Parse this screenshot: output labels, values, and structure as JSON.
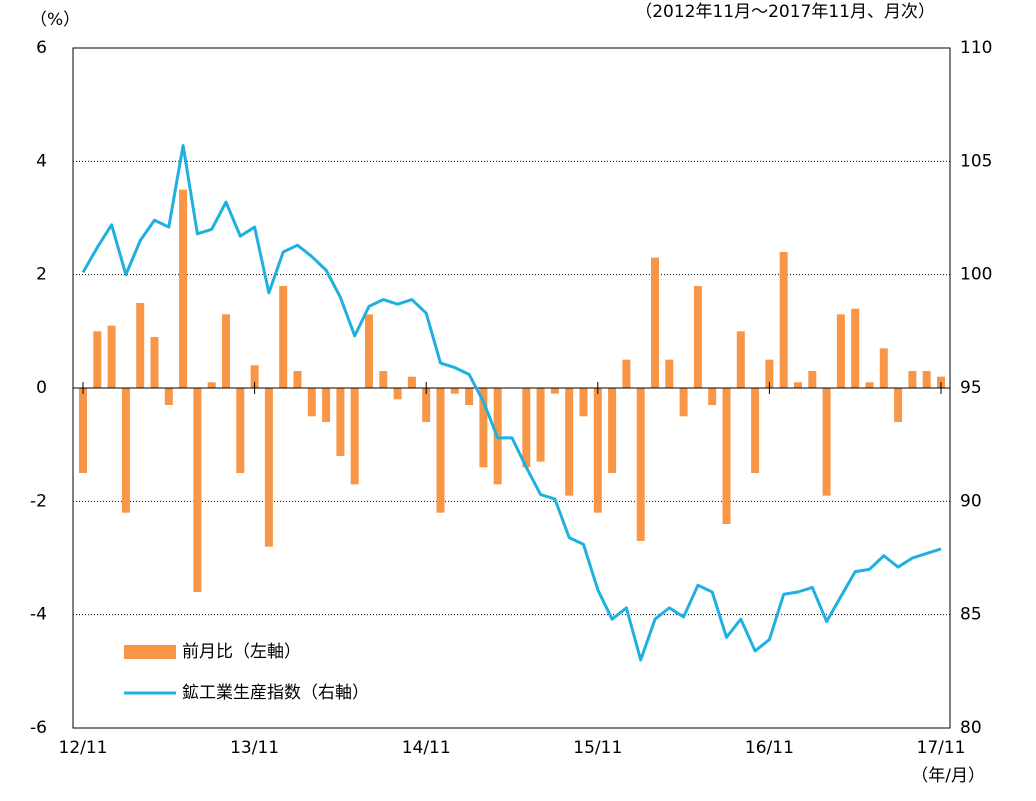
{
  "chart_data": {
    "type": "bar_line",
    "y_label": "（%）",
    "subtitle": "（2012年11月～2017年11月、月次）",
    "x_label": "（年/月）",
    "categories": [
      "12/11",
      null,
      null,
      null,
      null,
      null,
      null,
      null,
      null,
      null,
      null,
      null,
      "13/11",
      null,
      null,
      null,
      null,
      null,
      null,
      null,
      null,
      null,
      null,
      null,
      "14/11",
      null,
      null,
      null,
      null,
      null,
      null,
      null,
      null,
      null,
      null,
      null,
      "15/11",
      null,
      null,
      null,
      null,
      null,
      null,
      null,
      null,
      null,
      null,
      null,
      "16/11",
      null,
      null,
      null,
      null,
      null,
      null,
      null,
      null,
      null,
      null,
      null,
      "17/11"
    ],
    "series": [
      {
        "name": "前月比（左軸）",
        "color": "#f79646",
        "kind": "bar",
        "values": [
          -1.5,
          1.0,
          1.1,
          -2.2,
          1.5,
          0.9,
          -0.3,
          3.5,
          -3.6,
          0.1,
          1.3,
          -1.5,
          0.4,
          -2.8,
          1.8,
          0.3,
          -0.5,
          -0.6,
          -1.2,
          -1.7,
          1.3,
          0.3,
          -0.2,
          0.2,
          -0.6,
          -2.2,
          -0.1,
          -0.3,
          -1.4,
          -1.7,
          0.0,
          -1.4,
          -1.3,
          -0.1,
          -1.9,
          -0.5,
          -2.2,
          -1.5,
          0.5,
          -2.7,
          2.3,
          0.5,
          -0.5,
          1.8,
          -0.3,
          -2.4,
          1.0,
          -1.5,
          0.5,
          2.4,
          0.1,
          0.3,
          -1.9,
          1.3,
          1.4,
          0.1,
          0.7,
          -0.6,
          0.3,
          0.3,
          0.2
        ]
      },
      {
        "name": "鉱工業生産指数（右軸）",
        "color": "#1fb0e0",
        "kind": "line",
        "axis": "y2",
        "values": [
          100.1,
          101.2,
          102.2,
          100.0,
          101.5,
          102.4,
          102.1,
          105.7,
          101.8,
          102.0,
          103.2,
          101.7,
          102.1,
          99.2,
          101.0,
          101.3,
          100.8,
          100.2,
          99.0,
          97.3,
          98.6,
          98.9,
          98.7,
          98.9,
          98.3,
          96.1,
          95.9,
          95.6,
          94.4,
          92.8,
          92.8,
          91.5,
          90.3,
          90.1,
          88.4,
          88.1,
          86.1,
          84.8,
          85.3,
          83.0,
          84.8,
          85.3,
          84.9,
          86.3,
          86.0,
          84.0,
          84.8,
          83.4,
          83.9,
          85.9,
          86.0,
          86.2,
          84.7,
          85.8,
          86.9,
          87.0,
          87.6,
          87.1,
          87.5,
          87.7,
          87.9
        ]
      }
    ],
    "ylim": [
      -6,
      6
    ],
    "yticks": [
      6,
      4,
      2,
      0,
      -2,
      -4,
      -6
    ],
    "y2lim": [
      80,
      110
    ],
    "y2ticks": [
      110,
      105,
      100,
      95,
      90,
      85,
      80
    ],
    "grid": true
  }
}
